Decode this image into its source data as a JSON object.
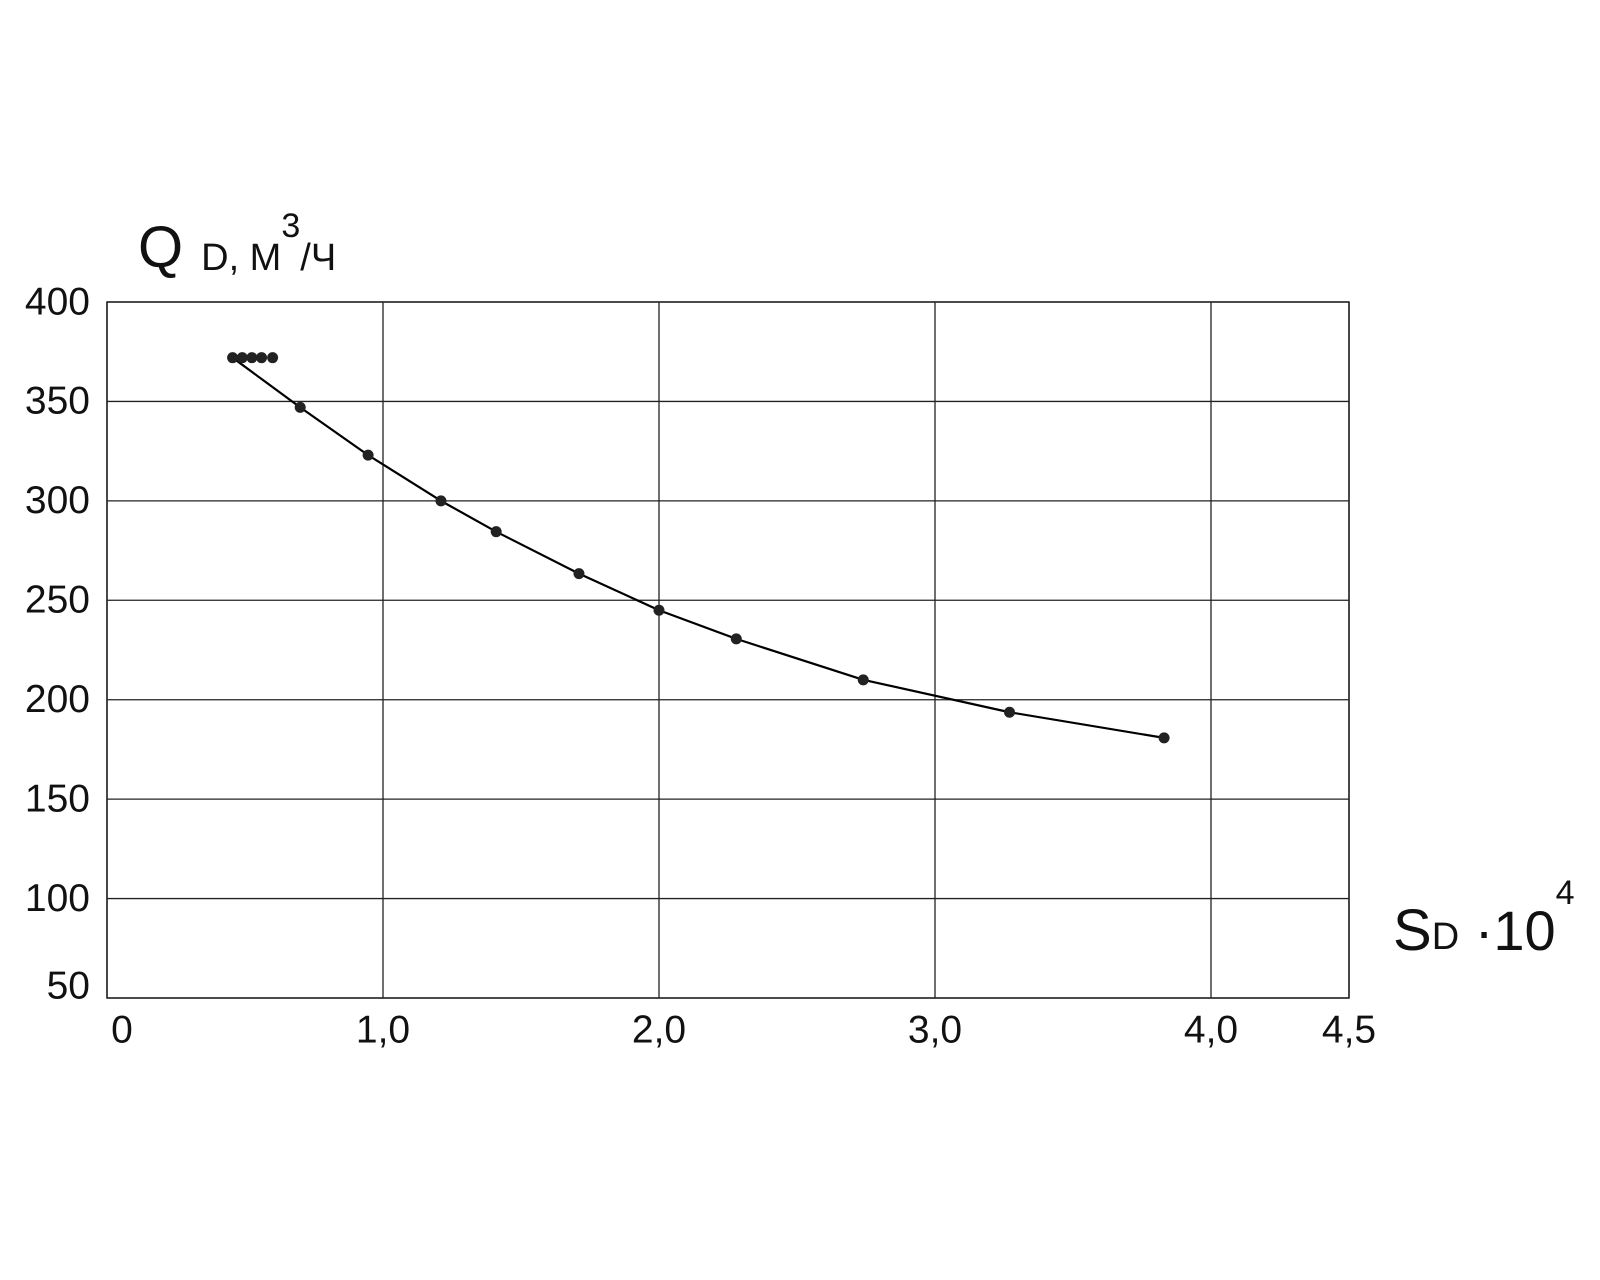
{
  "chart_data": {
    "type": "line",
    "y_label": {
      "main": "Q",
      "sub": "D, М",
      "sup": "3",
      "rest": "/Ч"
    },
    "x_label": {
      "main": "S",
      "sub": "D",
      "rest": " ·10",
      "sup": "4"
    },
    "xlim": [
      0,
      4.5
    ],
    "xticks": [
      0,
      {
        "value": 1,
        "label": "1,0"
      },
      {
        "value": 2,
        "label": "2,0"
      },
      {
        "value": 3,
        "label": "3,0"
      },
      {
        "value": 4,
        "label": "4,0"
      },
      {
        "value": 4.5,
        "label": "4,5"
      }
    ],
    "ylim": [
      50,
      400
    ],
    "yticks": [
      50,
      100,
      150,
      200,
      250,
      300,
      350,
      400
    ],
    "grid": true,
    "series": [
      {
        "color": "#000000",
        "markers": false,
        "x": [
          0.455,
          0.7,
          0.946,
          1.21,
          1.41,
          1.71,
          2.0,
          2.28,
          2.74,
          3.27,
          3.83
        ],
        "values": [
          372,
          347,
          323,
          300,
          284.5,
          263.4,
          245,
          230.6,
          210,
          193.7,
          180.8
        ]
      },
      {
        "color": "#222222",
        "markers": true,
        "x": [
          0.455,
          0.49,
          0.525,
          0.56,
          0.6,
          0.7,
          0.946,
          1.21,
          1.41,
          1.71,
          2.0,
          2.28,
          2.74,
          3.27,
          3.83
        ],
        "values": [
          372,
          372,
          372,
          372,
          372,
          347,
          323,
          300,
          284.5,
          263.4,
          245,
          230.6,
          210,
          193.7,
          180.8
        ]
      }
    ]
  }
}
